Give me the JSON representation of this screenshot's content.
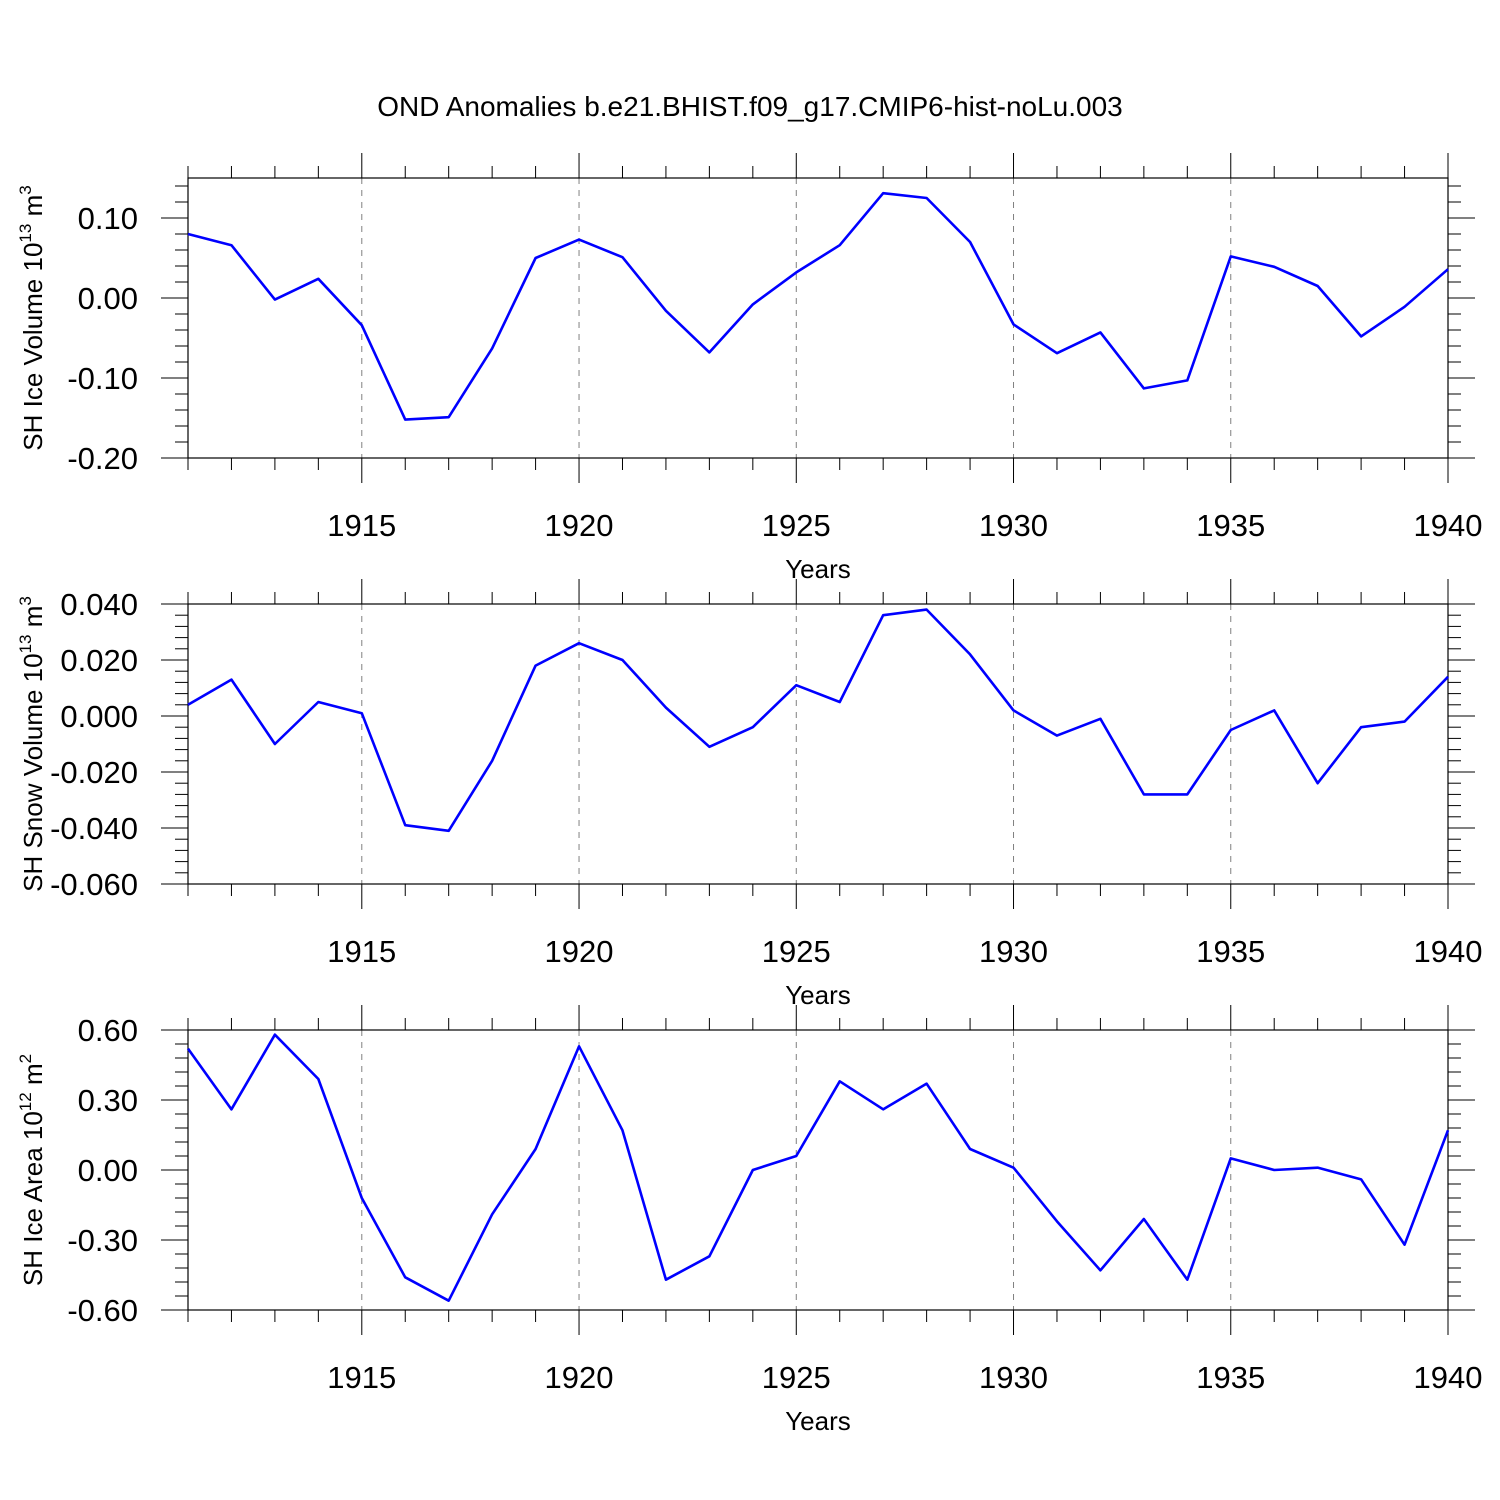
{
  "title": "OND Anomalies b.e21.BHIST.f09_g17.CMIP6-hist-noLu.003",
  "colors": {
    "line": "#0000ff",
    "axis": "#000000",
    "grid": "#808080"
  },
  "chart_data": [
    {
      "type": "line",
      "ylabel_parts": [
        "SH Ice Volume 10",
        "13",
        " m",
        "3"
      ],
      "xlabel": "Years",
      "xlim": [
        1911,
        1940
      ],
      "ylim": [
        -0.2,
        0.15
      ],
      "yticks": [
        -0.2,
        -0.1,
        0.0,
        0.1
      ],
      "yticklabels": [
        "-0.20",
        "-0.10",
        "0.00",
        "0.10"
      ],
      "xticks": [
        1915,
        1920,
        1925,
        1930,
        1935,
        1940
      ],
      "xticklabels": [
        "1915",
        "1920",
        "1925",
        "1930",
        "1935",
        "1940"
      ],
      "grid": "vertical dashed at labeled x ticks",
      "series": [
        {
          "x": [
            1911,
            1912,
            1913,
            1914,
            1915,
            1916,
            1917,
            1918,
            1919,
            1920,
            1921,
            1922,
            1923,
            1924,
            1925,
            1926,
            1927,
            1928,
            1929,
            1930,
            1931,
            1932,
            1933,
            1934,
            1935,
            1936,
            1937,
            1938,
            1939,
            1940
          ],
          "values": [
            0.08,
            0.066,
            -0.002,
            0.024,
            -0.034,
            -0.152,
            -0.149,
            -0.063,
            0.05,
            0.073,
            0.051,
            -0.016,
            -0.068,
            -0.008,
            0.032,
            0.066,
            0.131,
            0.125,
            0.07,
            -0.033,
            -0.069,
            -0.043,
            -0.113,
            -0.103,
            0.052,
            0.039,
            0.015,
            -0.048,
            -0.011,
            0.036
          ]
        }
      ]
    },
    {
      "type": "line",
      "ylabel_parts": [
        "SH Snow Volume 10",
        "13",
        " m",
        "3"
      ],
      "xlabel": "Years",
      "xlim": [
        1911,
        1940
      ],
      "ylim": [
        -0.06,
        0.04
      ],
      "yticks": [
        -0.06,
        -0.04,
        -0.02,
        0.0,
        0.02,
        0.04
      ],
      "yticklabels": [
        "-0.060",
        "-0.040",
        "-0.020",
        "0.000",
        "0.020",
        "0.040"
      ],
      "xticks": [
        1915,
        1920,
        1925,
        1930,
        1935,
        1940
      ],
      "xticklabels": [
        "1915",
        "1920",
        "1925",
        "1930",
        "1935",
        "1940"
      ],
      "grid": "vertical dashed at labeled x ticks",
      "series": [
        {
          "x": [
            1911,
            1912,
            1913,
            1914,
            1915,
            1916,
            1917,
            1918,
            1919,
            1920,
            1921,
            1922,
            1923,
            1924,
            1925,
            1926,
            1927,
            1928,
            1929,
            1930,
            1931,
            1932,
            1933,
            1934,
            1935,
            1936,
            1937,
            1938,
            1939,
            1940
          ],
          "values": [
            0.004,
            0.013,
            -0.01,
            0.005,
            0.001,
            -0.039,
            -0.041,
            -0.016,
            0.018,
            0.026,
            0.02,
            0.003,
            -0.011,
            -0.004,
            0.011,
            0.005,
            0.036,
            0.038,
            0.022,
            0.002,
            -0.007,
            -0.001,
            -0.028,
            -0.028,
            -0.005,
            0.002,
            -0.024,
            -0.004,
            -0.002,
            0.014
          ]
        }
      ]
    },
    {
      "type": "line",
      "ylabel_parts": [
        "SH Ice Area 10",
        "12",
        " m",
        "2"
      ],
      "xlabel": "Years",
      "xlim": [
        1911,
        1940
      ],
      "ylim": [
        -0.6,
        0.6
      ],
      "yticks": [
        -0.6,
        -0.3,
        0.0,
        0.3,
        0.6
      ],
      "yticklabels": [
        "-0.60",
        "-0.30",
        "0.00",
        "0.30",
        "0.60"
      ],
      "xticks": [
        1915,
        1920,
        1925,
        1930,
        1935,
        1940
      ],
      "xticklabels": [
        "1915",
        "1920",
        "1925",
        "1930",
        "1935",
        "1940"
      ],
      "grid": "vertical dashed at labeled x ticks",
      "series": [
        {
          "x": [
            1911,
            1912,
            1913,
            1914,
            1915,
            1916,
            1917,
            1918,
            1919,
            1920,
            1921,
            1922,
            1923,
            1924,
            1925,
            1926,
            1927,
            1928,
            1929,
            1930,
            1931,
            1932,
            1933,
            1934,
            1935,
            1936,
            1937,
            1938,
            1939,
            1940
          ],
          "values": [
            0.52,
            0.26,
            0.58,
            0.39,
            -0.12,
            -0.46,
            -0.56,
            -0.19,
            0.09,
            0.53,
            0.17,
            -0.47,
            -0.37,
            0.0,
            0.06,
            0.38,
            0.26,
            0.37,
            0.09,
            0.01,
            -0.22,
            -0.43,
            -0.21,
            -0.47,
            0.05,
            0.0,
            0.01,
            -0.04,
            -0.32,
            0.17
          ]
        }
      ]
    }
  ]
}
